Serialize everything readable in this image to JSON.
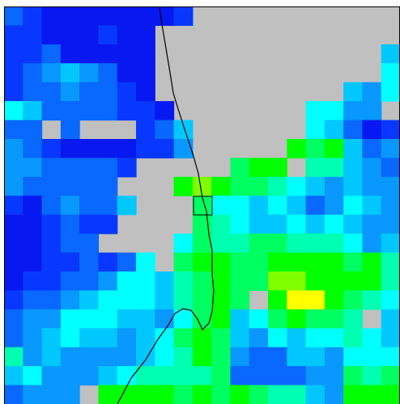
{
  "chart_data": {
    "type": "heatmap",
    "missing_color": "#c0c0c0",
    "colormap": [
      "#0000c8",
      "#0818f0",
      "#0838ff",
      "#0868ff",
      "#0898ff",
      "#00c8ff",
      "#00ffff",
      "#00ffb0",
      "#00ff60",
      "#00ff00",
      "#80ff00",
      "#ffff00"
    ],
    "values": [
      [
        3,
        2,
        1,
        1,
        1,
        1,
        1,
        1,
        1,
        2,
        null,
        null,
        null,
        null,
        null,
        null,
        null,
        null,
        null,
        null,
        null
      ],
      [
        2,
        2,
        1,
        1,
        1,
        2,
        1,
        1,
        null,
        null,
        null,
        null,
        null,
        null,
        null,
        null,
        null,
        null,
        null,
        null,
        null
      ],
      [
        2,
        2,
        3,
        1,
        1,
        1,
        1,
        1,
        null,
        null,
        null,
        null,
        null,
        null,
        null,
        null,
        null,
        null,
        null,
        null,
        5
      ],
      [
        2,
        3,
        4,
        5,
        4,
        3,
        1,
        1,
        null,
        null,
        null,
        null,
        null,
        null,
        null,
        null,
        null,
        null,
        null,
        null,
        6
      ],
      [
        2,
        3,
        3,
        4,
        3,
        3,
        2,
        1,
        null,
        null,
        null,
        null,
        null,
        null,
        null,
        null,
        null,
        null,
        5,
        4,
        6
      ],
      [
        6,
        5,
        3,
        3,
        3,
        3,
        2,
        2,
        1,
        null,
        null,
        null,
        null,
        null,
        null,
        null,
        6,
        6,
        4,
        4,
        null
      ],
      [
        3,
        3,
        null,
        3,
        null,
        null,
        null,
        2,
        3,
        5,
        null,
        null,
        null,
        null,
        null,
        null,
        6,
        5,
        3,
        1,
        2
      ],
      [
        4,
        3,
        2,
        1,
        1,
        1,
        1,
        2,
        2,
        4,
        null,
        null,
        null,
        null,
        null,
        9,
        8,
        9,
        5,
        3,
        4
      ],
      [
        4,
        4,
        3,
        3,
        3,
        3,
        2,
        null,
        null,
        null,
        null,
        null,
        8,
        9,
        9,
        null,
        7,
        7,
        5,
        4,
        3
      ],
      [
        4,
        3,
        3,
        3,
        3,
        3,
        null,
        null,
        null,
        9,
        10,
        9,
        8,
        8,
        7,
        6,
        5,
        4,
        5,
        4,
        4
      ],
      [
        2,
        1,
        3,
        4,
        3,
        3,
        5,
        null,
        null,
        null,
        8,
        6,
        6,
        5,
        6,
        5,
        3,
        4,
        6,
        5,
        4
      ],
      [
        1,
        1,
        2,
        3,
        2,
        2,
        null,
        null,
        null,
        null,
        8,
        7,
        6,
        5,
        5,
        6,
        5,
        6,
        5,
        4,
        4
      ],
      [
        1,
        1,
        2,
        3,
        3,
        null,
        null,
        null,
        null,
        6,
        8,
        7,
        7,
        8,
        8,
        7,
        7,
        7,
        6,
        4,
        5
      ],
      [
        1,
        1,
        2,
        2,
        3,
        2,
        3,
        6,
        null,
        8,
        9,
        9,
        8,
        8,
        9,
        9,
        9,
        9,
        8,
        9,
        7
      ],
      [
        1,
        2,
        2,
        3,
        3,
        4,
        6,
        6,
        5,
        7,
        8,
        9,
        8,
        8,
        10,
        10,
        9,
        9,
        9,
        9,
        7
      ],
      [
        2,
        3,
        3,
        4,
        5,
        6,
        6,
        6,
        5,
        7,
        8,
        9,
        8,
        null,
        9,
        11,
        11,
        9,
        8,
        7,
        6
      ],
      [
        3,
        4,
        4,
        6,
        6,
        6,
        5,
        5,
        4,
        6,
        8,
        9,
        5,
        6,
        8,
        9,
        8,
        8,
        7,
        null,
        5
      ],
      [
        3,
        4,
        5,
        6,
        5,
        5,
        4,
        5,
        6,
        8,
        9,
        8,
        5,
        4,
        6,
        5,
        6,
        6,
        7,
        6,
        5
      ],
      [
        7,
        4,
        5,
        4,
        4,
        4,
        4,
        5,
        6,
        7,
        9,
        8,
        4,
        3,
        3,
        5,
        5,
        4,
        6,
        6,
        6
      ],
      [
        5,
        6,
        4,
        4,
        4,
        5,
        6,
        7,
        7,
        7,
        7,
        8,
        3,
        3,
        3,
        3,
        4,
        4,
        8,
        7,
        8
      ],
      [
        3,
        4,
        4,
        4,
        null,
        9,
        9,
        9,
        9,
        8,
        9,
        8,
        9,
        8,
        7,
        7,
        5,
        4,
        9,
        9,
        9
      ]
    ]
  }
}
